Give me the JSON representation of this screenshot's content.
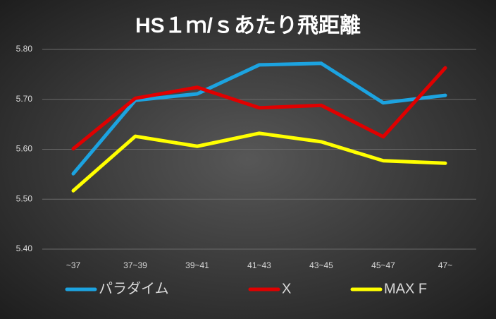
{
  "chart_data": {
    "type": "line",
    "title": "HS１ｍ/ｓあたり飛距離",
    "categories": [
      "~37",
      "37~39",
      "39~41",
      "41~43",
      "43~45",
      "45~47",
      "47~"
    ],
    "series": [
      {
        "name": "パラダイム",
        "color": "#1ca3e0",
        "values": [
          5.551,
          5.698,
          5.711,
          5.769,
          5.772,
          5.693,
          5.708
        ]
      },
      {
        "name": "X",
        "color": "#e00000",
        "values": [
          5.601,
          5.702,
          5.724,
          5.683,
          5.688,
          5.625,
          5.763
        ]
      },
      {
        "name": "MAX F",
        "color": "#ffff00",
        "values": [
          5.517,
          5.626,
          5.606,
          5.632,
          5.615,
          5.577,
          5.572
        ]
      }
    ],
    "ylim": [
      5.4,
      5.8
    ],
    "yticks": [
      {
        "value": 5.4,
        "label": "5.40"
      },
      {
        "value": 5.5,
        "label": "5.50"
      },
      {
        "value": 5.6,
        "label": "5.60"
      },
      {
        "value": 5.7,
        "label": "5.70"
      },
      {
        "value": 5.8,
        "label": "5.80"
      }
    ],
    "grid": true,
    "legend": "bottom"
  }
}
